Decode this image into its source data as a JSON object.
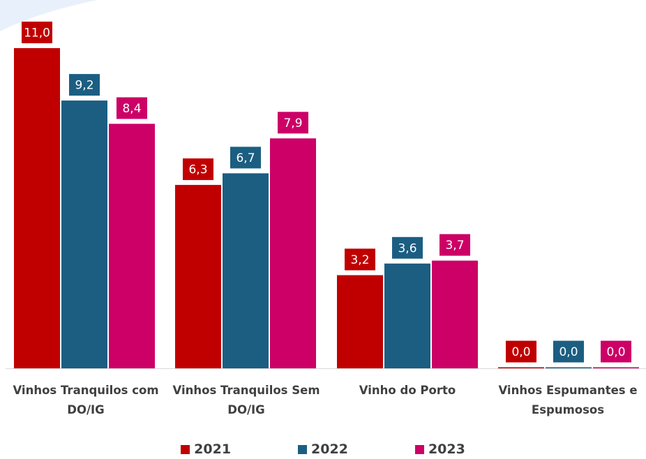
{
  "chart_data": {
    "type": "bar",
    "categories": [
      "Vinhos Tranquilos com DO/IG",
      "Vinhos Tranquilos Sem DO/IG",
      "Vinho do Porto",
      "Vinhos Espumantes e Espumosos"
    ],
    "series": [
      {
        "name": "2021",
        "color": "#C00000",
        "values": [
          11.0,
          6.3,
          3.2,
          0.0
        ],
        "labels": [
          "11,0",
          "6,3",
          "3,2",
          "0,0"
        ]
      },
      {
        "name": "2022",
        "color": "#1B5E82",
        "values": [
          9.2,
          6.7,
          3.6,
          0.0
        ],
        "labels": [
          "9,2",
          "6,7",
          "3,6",
          "0,0"
        ]
      },
      {
        "name": "2023",
        "color": "#CC0066",
        "values": [
          8.4,
          7.9,
          3.7,
          0.0
        ],
        "labels": [
          "8,4",
          "7,9",
          "3,7",
          "0,0"
        ]
      }
    ],
    "title": "",
    "xlabel": "",
    "ylabel": "",
    "ylim": [
      0,
      11.0
    ],
    "grid": false,
    "legend_position": "bottom"
  }
}
